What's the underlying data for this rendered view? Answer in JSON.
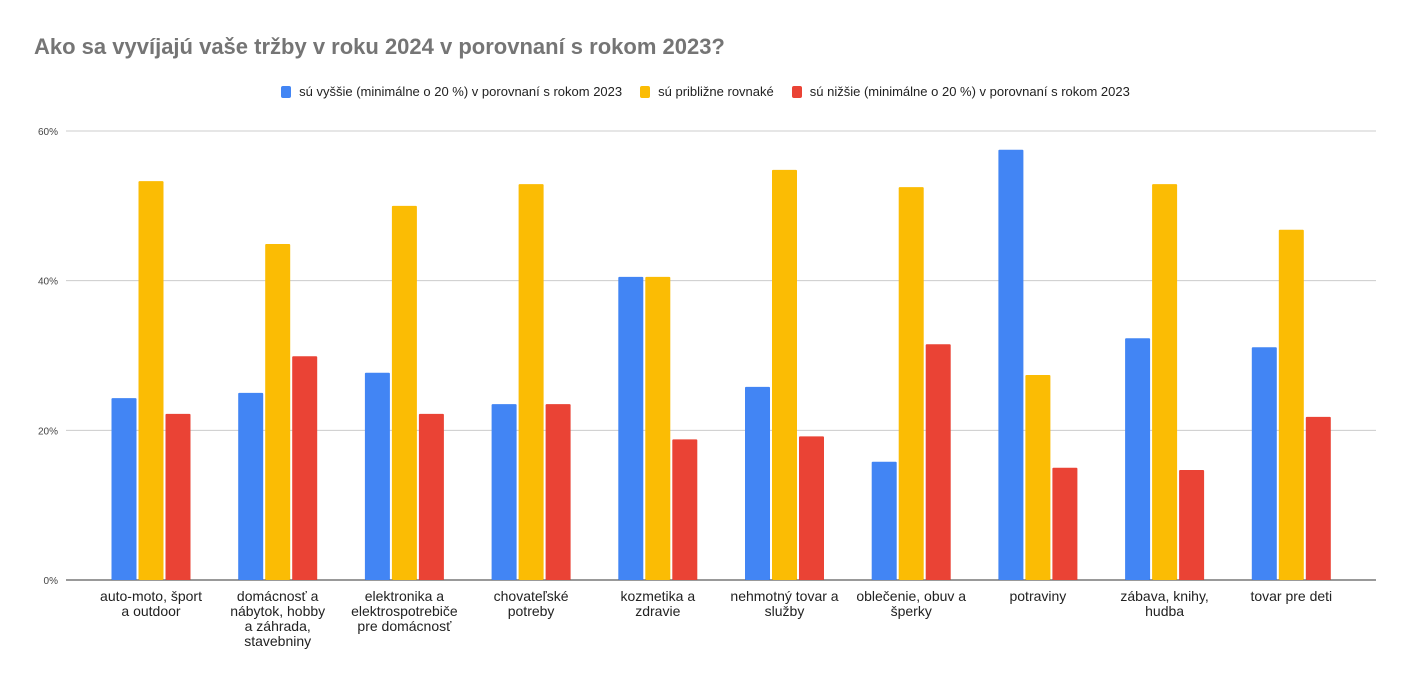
{
  "chart_data": {
    "type": "bar",
    "title": "Ako sa vyvíjajú vaše tržby v roku 2024 v porovnaní s rokom 2023?",
    "categories": [
      [
        "auto-moto, šport",
        "a outdoor"
      ],
      [
        "domácnosť a",
        "nábytok, hobby",
        "a záhrada,",
        "stavebniny"
      ],
      [
        "elektronika a",
        "elektrospotrebiče",
        "pre domácnosť"
      ],
      [
        "chovateľské",
        "potreby"
      ],
      [
        "kozmetika a",
        "zdravie"
      ],
      [
        "nehmotný tovar a",
        "služby"
      ],
      [
        "oblečenie, obuv a",
        "šperky"
      ],
      [
        "potraviny"
      ],
      [
        "zábava, knihy,",
        "hudba"
      ],
      [
        "tovar pre deti"
      ]
    ],
    "series": [
      {
        "name": "sú vyššie (minimálne o 20 %) v porovnaní s rokom 2023",
        "color": "#4285f4",
        "values": [
          24.3,
          25.0,
          27.7,
          23.5,
          40.5,
          25.8,
          15.8,
          57.5,
          32.3,
          31.1
        ]
      },
      {
        "name": "sú približne rovnaké",
        "color": "#fbbc04",
        "values": [
          53.3,
          44.9,
          50.0,
          52.9,
          40.5,
          54.8,
          52.5,
          27.4,
          52.9,
          46.8
        ]
      },
      {
        "name": "sú nižšie (minimálne o 20 %) v porovnaní s rokom 2023",
        "color": "#ea4335",
        "values": [
          22.2,
          29.9,
          22.2,
          23.5,
          18.8,
          19.2,
          31.5,
          15.0,
          14.7,
          21.8
        ]
      }
    ],
    "yticks": [
      "0%",
      "20%",
      "40%",
      "60%"
    ],
    "ytick_values": [
      0,
      20,
      40,
      60
    ],
    "ylim": [
      0,
      60
    ],
    "legend": "top",
    "grid": true
  }
}
